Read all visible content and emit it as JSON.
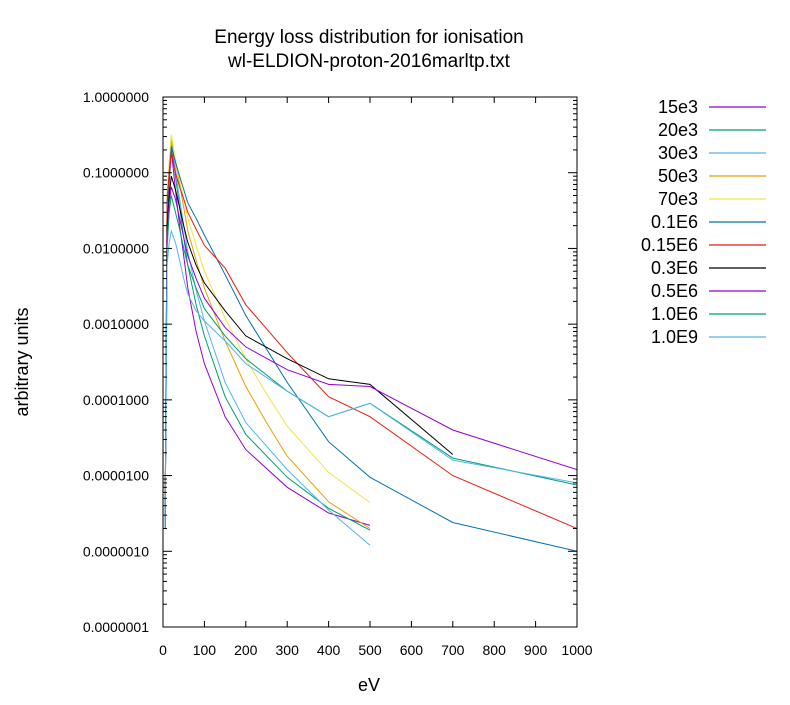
{
  "chart_data": {
    "type": "line",
    "title": "Energy loss distribution for ionisation",
    "subtitle": "wl-ELDION-proton-2016marltp.txt",
    "xlabel": "eV",
    "ylabel": "arbitrary units",
    "xlim": [
      0,
      1000
    ],
    "ylim": [
      1e-07,
      1
    ],
    "yscale": "log",
    "grid": false,
    "legend_position": "right",
    "x_ticks": [
      0,
      100,
      200,
      300,
      400,
      500,
      600,
      700,
      800,
      900,
      1000
    ],
    "x_tick_labels": [
      "0",
      "100",
      "200",
      "300",
      "400",
      "500",
      "600",
      "700",
      "800",
      "900",
      "1000"
    ],
    "y_ticks": [
      1,
      0.1,
      0.01,
      0.001,
      0.0001,
      1e-05,
      1e-06,
      1e-07
    ],
    "y_tick_labels": [
      "1.0000000",
      "0.1000000",
      "0.0100000",
      "0.0010000",
      "0.0001000",
      "0.0000100",
      "0.0000010",
      "0.0000001"
    ],
    "series": [
      {
        "name": "15e3",
        "color": "#9400d3",
        "x": [
          5,
          10,
          15,
          20,
          30,
          40,
          50,
          60,
          80,
          100,
          150,
          200,
          300,
          400,
          500
        ],
        "y": [
          2e-06,
          0.02,
          0.07,
          0.2,
          0.06,
          0.02,
          0.008,
          0.003,
          0.0008,
          0.0003,
          6e-05,
          2.2e-05,
          7e-06,
          3.2e-06,
          2.2e-06
        ]
      },
      {
        "name": "20e3",
        "color": "#009e73",
        "x": [
          5,
          10,
          15,
          20,
          30,
          40,
          50,
          60,
          80,
          100,
          150,
          200,
          300,
          400,
          500
        ],
        "y": [
          2e-06,
          0.03,
          0.09,
          0.26,
          0.09,
          0.035,
          0.014,
          0.006,
          0.0018,
          0.0007,
          0.00011,
          3.5e-05,
          9.5e-06,
          3.7e-06,
          1.9e-06
        ]
      },
      {
        "name": "30e3",
        "color": "#56b4e9",
        "x": [
          5,
          10,
          15,
          20,
          30,
          40,
          50,
          60,
          80,
          100,
          150,
          200,
          300,
          400,
          500
        ],
        "y": [
          2e-06,
          0.04,
          0.11,
          0.28,
          0.11,
          0.045,
          0.02,
          0.009,
          0.0028,
          0.0011,
          0.00017,
          5e-05,
          1.2e-05,
          3.5e-06,
          1.2e-06
        ]
      },
      {
        "name": "50e3",
        "color": "#e69f00",
        "x": [
          5,
          10,
          15,
          20,
          30,
          40,
          50,
          60,
          80,
          100,
          150,
          200,
          250,
          300,
          400,
          500
        ],
        "y": [
          2e-06,
          0.05,
          0.13,
          0.3,
          0.14,
          0.07,
          0.035,
          0.017,
          0.007,
          0.003,
          0.0006,
          0.00015,
          5e-05,
          1.8e-05,
          4.5e-06,
          2e-06
        ]
      },
      {
        "name": "70e3",
        "color": "#f0e442",
        "x": [
          5,
          10,
          15,
          20,
          30,
          40,
          50,
          60,
          80,
          100,
          150,
          200,
          250,
          300,
          400,
          500
        ],
        "y": [
          2e-06,
          0.05,
          0.14,
          0.32,
          0.15,
          0.08,
          0.045,
          0.025,
          0.011,
          0.005,
          0.0012,
          0.00035,
          0.00012,
          4.5e-05,
          1.1e-05,
          4.4e-06
        ]
      },
      {
        "name": "0.1E6",
        "color": "#0072b2",
        "x": [
          5,
          10,
          15,
          20,
          30,
          40,
          50,
          60,
          80,
          100,
          150,
          200,
          300,
          400,
          500,
          700,
          1000
        ],
        "y": [
          2e-06,
          0.04,
          0.1,
          0.22,
          0.14,
          0.09,
          0.06,
          0.04,
          0.025,
          0.015,
          0.0045,
          0.0013,
          0.00017,
          2.8e-05,
          9.5e-06,
          2.4e-06,
          1e-06
        ]
      },
      {
        "name": "0.15E6",
        "color": "#e51e10",
        "x": [
          5,
          10,
          15,
          20,
          30,
          40,
          50,
          60,
          80,
          100,
          150,
          200,
          300,
          400,
          500,
          700,
          1000
        ],
        "y": [
          2e-06,
          0.04,
          0.1,
          0.19,
          0.1,
          0.065,
          0.045,
          0.03,
          0.018,
          0.011,
          0.0055,
          0.0018,
          0.00042,
          0.00011,
          6e-05,
          1e-05,
          2e-06
        ]
      },
      {
        "name": "0.3E6",
        "color": "#000000",
        "x": [
          5,
          10,
          15,
          20,
          30,
          40,
          50,
          60,
          80,
          100,
          150,
          200,
          300,
          400,
          500,
          700
        ],
        "y": [
          2e-06,
          0.02,
          0.05,
          0.09,
          0.06,
          0.035,
          0.02,
          0.012,
          0.006,
          0.0035,
          0.0015,
          0.0007,
          0.00035,
          0.00019,
          0.00016,
          1.9e-05
        ]
      },
      {
        "name": "0.5E6",
        "color": "#9400d3",
        "x": [
          5,
          10,
          15,
          20,
          30,
          40,
          50,
          60,
          80,
          100,
          150,
          200,
          300,
          400,
          500,
          700,
          1000
        ],
        "y": [
          2e-06,
          0.015,
          0.04,
          0.065,
          0.045,
          0.025,
          0.014,
          0.008,
          0.004,
          0.0022,
          0.0009,
          0.0005,
          0.00025,
          0.00016,
          0.00015,
          4e-05,
          1.2e-05
        ]
      },
      {
        "name": "1.0E6",
        "color": "#009e73",
        "x": [
          5,
          10,
          15,
          20,
          30,
          40,
          50,
          60,
          80,
          100,
          150,
          200,
          300,
          400,
          500,
          700,
          1000
        ],
        "y": [
          2e-06,
          0.01,
          0.03,
          0.05,
          0.03,
          0.018,
          0.01,
          0.006,
          0.003,
          0.0016,
          0.0007,
          0.00035,
          0.00013,
          6e-05,
          9e-05,
          1.7e-05,
          7.5e-06
        ]
      },
      {
        "name": "1.0E9",
        "color": "#56b4e9",
        "x": [
          5,
          10,
          15,
          20,
          30,
          40,
          50,
          60,
          80,
          100,
          150,
          200,
          300,
          400,
          500,
          700,
          1000
        ],
        "y": [
          2e-06,
          0.006,
          0.012,
          0.017,
          0.012,
          0.007,
          0.004,
          0.0025,
          0.0015,
          0.0011,
          0.0006,
          0.0003,
          0.00013,
          6e-05,
          9e-05,
          1.6e-05,
          8e-06
        ]
      }
    ]
  }
}
